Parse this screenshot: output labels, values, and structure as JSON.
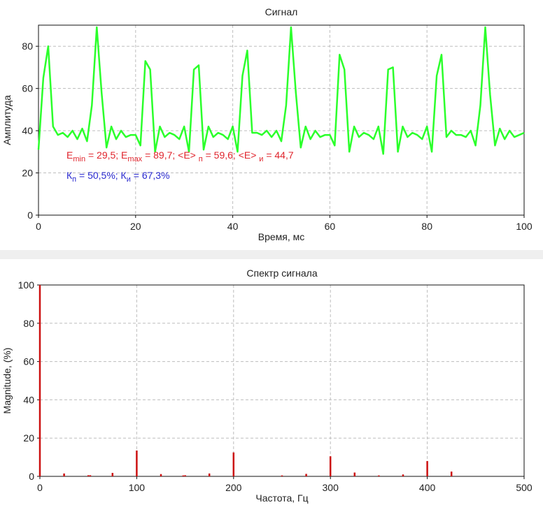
{
  "chart_data": [
    {
      "type": "line",
      "title": "Сигнал",
      "xlabel": "Время, мс",
      "ylabel": "Амплитуда",
      "xlim": [
        0,
        100
      ],
      "ylim": [
        0,
        90
      ],
      "xticks": [
        "0",
        "20",
        "40",
        "60",
        "80",
        "100"
      ],
      "yticks": [
        "0",
        "20",
        "40",
        "60",
        "80"
      ],
      "grid": true,
      "line_color": "#2bff2b",
      "annotations": {
        "line1": [
          {
            "t": "E",
            "s": ""
          },
          {
            "t": "min",
            "s": "sub"
          },
          {
            "t": " = 29,5; E",
            "s": ""
          },
          {
            "t": "max",
            "s": "sub"
          },
          {
            "t": " = 89,7; <E> ",
            "s": ""
          },
          {
            "t": "п",
            "s": "sub"
          },
          {
            "t": " = 59,6; <E> ",
            "s": ""
          },
          {
            "t": "и",
            "s": "sub"
          },
          {
            "t": " = 44,7",
            "s": ""
          }
        ],
        "line1_color": "#e0242c",
        "line2": [
          {
            "t": "К",
            "s": ""
          },
          {
            "t": "п",
            "s": "sub"
          },
          {
            "t": " = 50,5%; К",
            "s": ""
          },
          {
            "t": "и",
            "s": "sub"
          },
          {
            "t": " = 67,3%",
            "s": ""
          }
        ],
        "line2_color": "#2b2bd0"
      },
      "x": [
        0,
        1,
        2,
        3,
        4,
        5,
        6,
        7,
        8,
        9,
        10,
        11,
        12,
        13,
        14,
        15,
        16,
        17,
        18,
        19,
        20,
        21,
        22,
        23,
        24,
        25,
        26,
        27,
        28,
        29,
        30,
        31,
        32,
        33,
        34,
        35,
        36,
        37,
        38,
        39,
        40,
        41,
        42,
        43,
        44,
        45,
        46,
        47,
        48,
        49,
        50,
        51,
        52,
        53,
        54,
        55,
        56,
        57,
        58,
        59,
        60,
        61,
        62,
        63,
        64,
        65,
        66,
        67,
        68,
        69,
        70,
        71,
        72,
        73,
        74,
        75,
        76,
        77,
        78,
        79,
        80,
        81,
        82,
        83,
        84,
        85,
        86,
        87,
        88,
        89,
        90,
        91,
        92,
        93,
        94,
        95,
        96,
        97,
        98,
        99,
        100
      ],
      "y": [
        31,
        65,
        80,
        42,
        38,
        39,
        37,
        40,
        36,
        41,
        35,
        52,
        89,
        58,
        32,
        42,
        36,
        40,
        37,
        38,
        38,
        33,
        73,
        69,
        30,
        42,
        37,
        39,
        38,
        36,
        42,
        30,
        69,
        71,
        31,
        42,
        37,
        39,
        38,
        36,
        42,
        30,
        66,
        78,
        39,
        39,
        38,
        40,
        37,
        40,
        35,
        52,
        89,
        58,
        32,
        42,
        36,
        40,
        37,
        38,
        38,
        33,
        76,
        69,
        30,
        42,
        37,
        39,
        38,
        36,
        42,
        29,
        69,
        70,
        30,
        42,
        37,
        39,
        38,
        36,
        42,
        30,
        66,
        76,
        37,
        40,
        38,
        38,
        37,
        40,
        33,
        52,
        89,
        57,
        33,
        41,
        36,
        40,
        37,
        38,
        39
      ]
    },
    {
      "type": "bar",
      "title": "Спектр сигнала",
      "xlabel": "Частота, Гц",
      "ylabel": "Magnitude, (%)",
      "xlim": [
        0,
        500
      ],
      "ylim": [
        0,
        100
      ],
      "xticks": [
        "0",
        "100",
        "200",
        "300",
        "400",
        "500"
      ],
      "yticks": [
        "0",
        "20",
        "40",
        "60",
        "80",
        "100"
      ],
      "grid": true,
      "bar_color": "#cc1111",
      "x": [
        0,
        25,
        50,
        52,
        75,
        100,
        125,
        148,
        150,
        175,
        200,
        250,
        275,
        300,
        325,
        350,
        375,
        400,
        425
      ],
      "y": [
        100,
        1.5,
        0.6,
        0.6,
        1.8,
        13.5,
        1.2,
        0.5,
        0.6,
        1.5,
        12.5,
        0.5,
        1.3,
        10.5,
        2.0,
        0.5,
        1.0,
        8.0,
        2.5
      ]
    }
  ]
}
